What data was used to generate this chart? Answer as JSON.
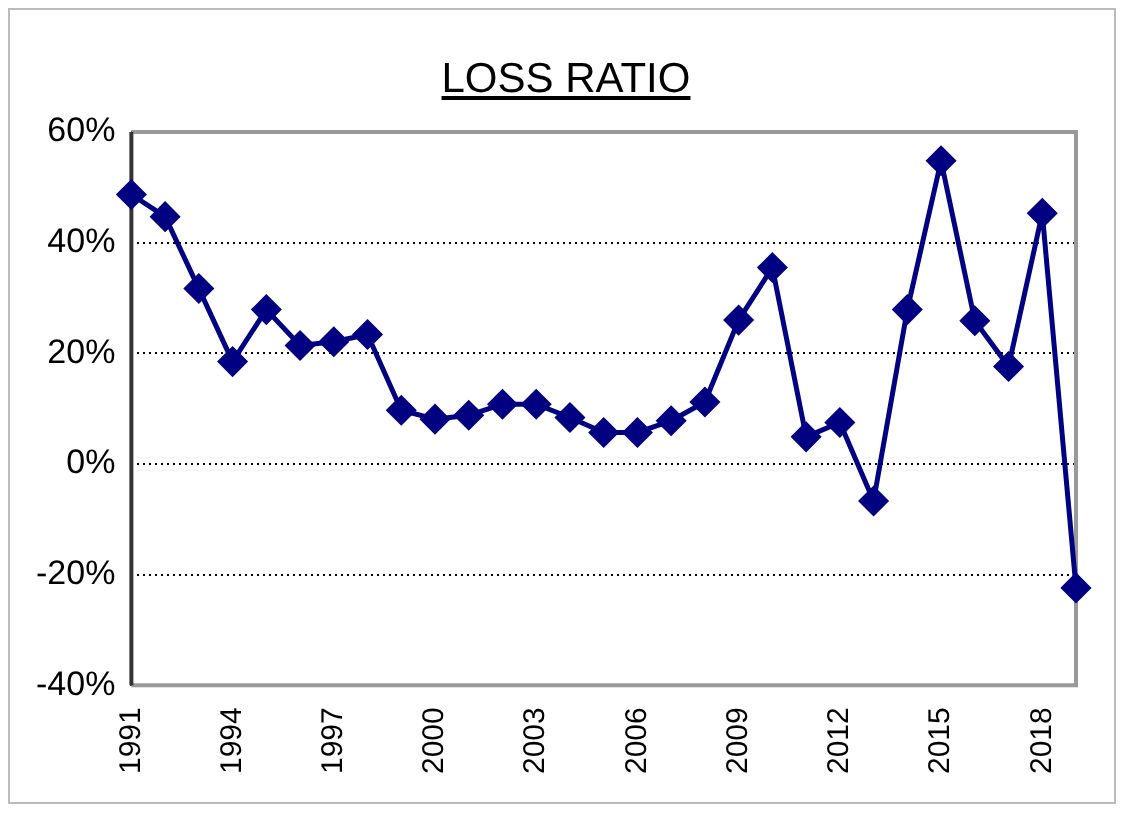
{
  "chart_data": {
    "type": "line",
    "title": "LOSS RATIO",
    "categories": [
      "1991",
      null,
      null,
      "1994",
      null,
      null,
      "1997",
      null,
      null,
      "2000",
      null,
      null,
      "2003",
      null,
      null,
      "2006",
      null,
      null,
      "2009",
      null,
      null,
      "2012",
      null,
      null,
      "2015",
      null,
      null,
      "2018",
      null
    ],
    "series": [
      {
        "color": "#000080",
        "values": [
          48.7,
          44.7,
          31.7,
          18.5,
          27.9,
          21.4,
          22.1,
          23.4,
          9.7,
          8.1,
          8.8,
          10.8,
          10.8,
          8.4,
          5.7,
          5.7,
          7.8,
          11.2,
          26.0,
          35.5,
          4.9,
          7.5,
          -6.7,
          27.9,
          54.8,
          25.9,
          17.6,
          45.3,
          -22.4
        ]
      }
    ],
    "ylim": [
      -40,
      60
    ],
    "yticks": [
      {
        "value": -40,
        "label": "-40%"
      },
      {
        "value": -20,
        "label": "-20%"
      },
      {
        "value": 0,
        "label": "0%"
      },
      {
        "value": 20,
        "label": "20%"
      },
      {
        "value": 40,
        "label": "40%"
      },
      {
        "value": 60,
        "label": "60%"
      }
    ],
    "grid": "y",
    "legend": false,
    "marker": "diamond",
    "line_style": "solid"
  }
}
